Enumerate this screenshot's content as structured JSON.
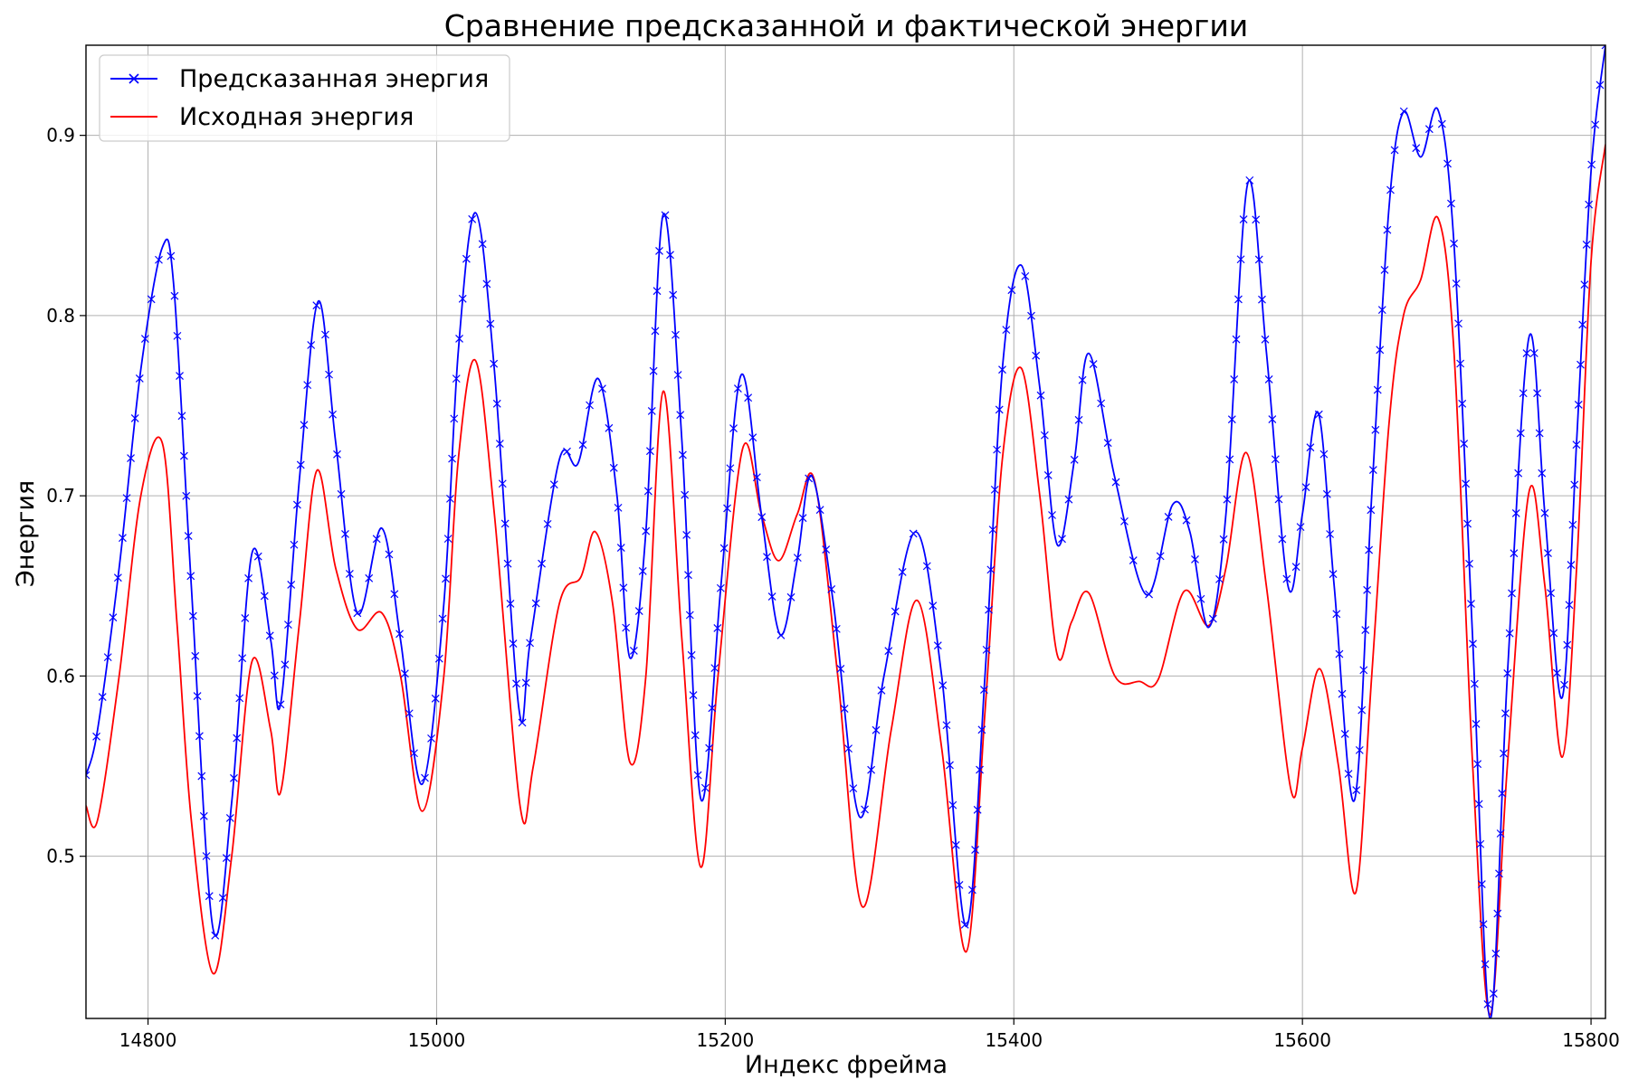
{
  "chart_data": {
    "type": "line",
    "title": "Сравнение предсказанной и фактической энергии",
    "xlabel": "Индекс фрейма",
    "ylabel": "Энергия",
    "xlim": [
      14757,
      15810
    ],
    "ylim": [
      0.41,
      0.95
    ],
    "xticks": [
      14800,
      15000,
      15200,
      15400,
      15600,
      15800
    ],
    "yticks": [
      0.5,
      0.6,
      0.7,
      0.8,
      0.9
    ],
    "grid": true,
    "legend_position": "top-left",
    "series": [
      {
        "name": "Предсказанная энергия",
        "color": "#0000ff",
        "marker": "x",
        "x": [
          14757,
          14765,
          14780,
          14795,
          14810,
          14818,
          14830,
          14845,
          14858,
          14872,
          14885,
          14892,
          14905,
          14918,
          14930,
          14945,
          14962,
          14975,
          14990,
          15005,
          15015,
          15027,
          15040,
          15057,
          15065,
          15085,
          15098,
          15112,
          15125,
          15134,
          15145,
          15157,
          15170,
          15183,
          15197,
          15211,
          15225,
          15238,
          15250,
          15260,
          15275,
          15293,
          15310,
          15332,
          15350,
          15367,
          15380,
          15392,
          15405,
          15418,
          15430,
          15442,
          15452,
          15470,
          15492,
          15510,
          15522,
          15535,
          15547,
          15562,
          15575,
          15590,
          15600,
          15611,
          15622,
          15636,
          15648,
          15660,
          15670,
          15682,
          15694,
          15705,
          15718,
          15730,
          15742,
          15757,
          15768,
          15780,
          15790,
          15800,
          15810
        ],
        "y": [
          0.545,
          0.57,
          0.66,
          0.77,
          0.838,
          0.815,
          0.65,
          0.46,
          0.53,
          0.668,
          0.62,
          0.585,
          0.71,
          0.808,
          0.73,
          0.635,
          0.682,
          0.62,
          0.54,
          0.64,
          0.78,
          0.857,
          0.77,
          0.582,
          0.62,
          0.72,
          0.718,
          0.765,
          0.7,
          0.61,
          0.68,
          0.856,
          0.73,
          0.532,
          0.65,
          0.767,
          0.69,
          0.623,
          0.665,
          0.711,
          0.64,
          0.522,
          0.6,
          0.68,
          0.6,
          0.461,
          0.6,
          0.77,
          0.828,
          0.76,
          0.673,
          0.72,
          0.779,
          0.71,
          0.645,
          0.695,
          0.68,
          0.627,
          0.69,
          0.873,
          0.78,
          0.65,
          0.69,
          0.746,
          0.65,
          0.531,
          0.7,
          0.86,
          0.913,
          0.888,
          0.914,
          0.84,
          0.62,
          0.41,
          0.6,
          0.788,
          0.69,
          0.588,
          0.73,
          0.88,
          0.95
        ]
      },
      {
        "name": "Исходная энергия",
        "color": "#ff0000",
        "marker": "none",
        "x": [
          14757,
          14765,
          14780,
          14795,
          14810,
          14820,
          14830,
          14845,
          14858,
          14872,
          14885,
          14892,
          14905,
          14917,
          14930,
          14945,
          14962,
          14975,
          14990,
          15005,
          15015,
          15027,
          15040,
          15058,
          15067,
          15085,
          15100,
          15110,
          15122,
          15134,
          15145,
          15157,
          15170,
          15183,
          15195,
          15212,
          15225,
          15237,
          15250,
          15262,
          15278,
          15295,
          15315,
          15333,
          15350,
          15367,
          15380,
          15392,
          15405,
          15418,
          15430,
          15440,
          15452,
          15470,
          15487,
          15500,
          15518,
          15535,
          15547,
          15561,
          15575,
          15592,
          15600,
          15612,
          15625,
          15637,
          15648,
          15660,
          15670,
          15682,
          15694,
          15705,
          15718,
          15730,
          15742,
          15757,
          15768,
          15780,
          15790,
          15800,
          15810
        ],
        "y": [
          0.528,
          0.52,
          0.6,
          0.7,
          0.729,
          0.63,
          0.52,
          0.435,
          0.5,
          0.608,
          0.57,
          0.536,
          0.63,
          0.714,
          0.66,
          0.626,
          0.635,
          0.6,
          0.525,
          0.6,
          0.72,
          0.775,
          0.69,
          0.527,
          0.55,
          0.64,
          0.655,
          0.68,
          0.64,
          0.552,
          0.6,
          0.758,
          0.62,
          0.494,
          0.6,
          0.726,
          0.69,
          0.664,
          0.69,
          0.708,
          0.6,
          0.472,
          0.57,
          0.642,
          0.56,
          0.447,
          0.58,
          0.72,
          0.771,
          0.7,
          0.612,
          0.63,
          0.646,
          0.6,
          0.597,
          0.598,
          0.647,
          0.628,
          0.66,
          0.724,
          0.65,
          0.537,
          0.56,
          0.604,
          0.55,
          0.48,
          0.6,
          0.74,
          0.8,
          0.82,
          0.854,
          0.78,
          0.55,
          0.412,
          0.55,
          0.702,
          0.65,
          0.555,
          0.66,
          0.83,
          0.895
        ]
      }
    ]
  }
}
